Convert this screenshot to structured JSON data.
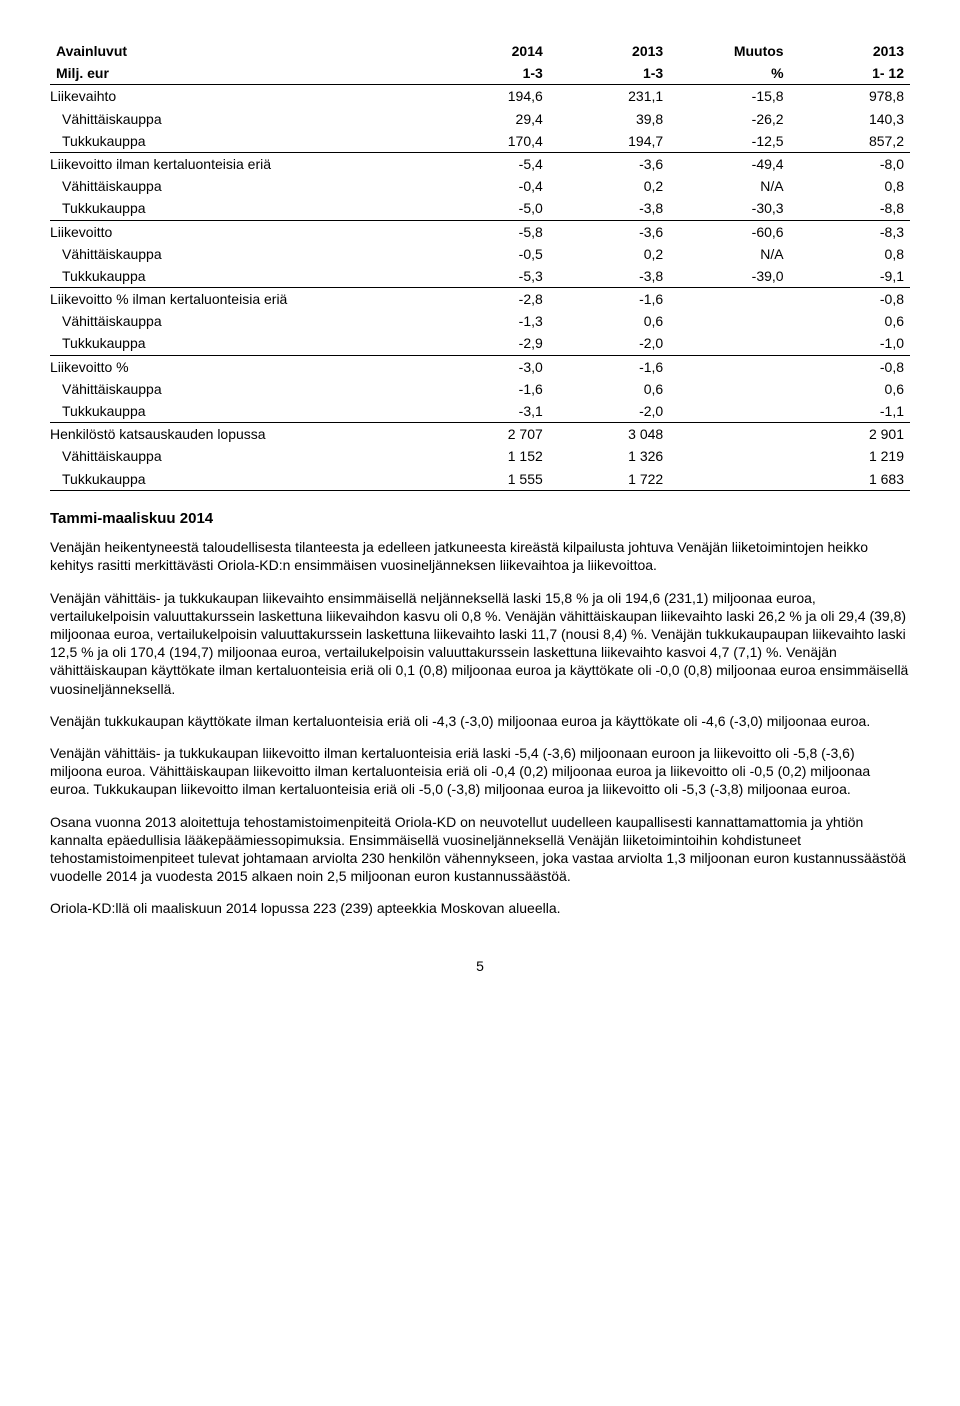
{
  "table": {
    "header_row1": {
      "c0": "Avainluvut",
      "c1": "2014",
      "c2": "2013",
      "c3": "Muutos",
      "c4": "2013"
    },
    "header_row2": {
      "c0": "Milj. eur",
      "c1": "1-3",
      "c2": "1-3",
      "c3": "%",
      "c4": "1- 12"
    },
    "rows": [
      {
        "label": "Liikevaihto",
        "c1": "194,6",
        "c2": "231,1",
        "c3": "-15,8",
        "c4": "978,8",
        "indent": false,
        "underline": false
      },
      {
        "label": "Vähittäiskauppa",
        "c1": "29,4",
        "c2": "39,8",
        "c3": "-26,2",
        "c4": "140,3",
        "indent": true,
        "underline": false
      },
      {
        "label": "Tukkukauppa",
        "c1": "170,4",
        "c2": "194,7",
        "c3": "-12,5",
        "c4": "857,2",
        "indent": true,
        "underline": true
      },
      {
        "label": "Liikevoitto ilman kertaluonteisia eriä",
        "c1": "-5,4",
        "c2": "-3,6",
        "c3": "-49,4",
        "c4": "-8,0",
        "indent": false,
        "underline": false
      },
      {
        "label": "Vähittäiskauppa",
        "c1": "-0,4",
        "c2": "0,2",
        "c3": "N/A",
        "c4": "0,8",
        "indent": true,
        "underline": false
      },
      {
        "label": "Tukkukauppa",
        "c1": "-5,0",
        "c2": "-3,8",
        "c3": "-30,3",
        "c4": "-8,8",
        "indent": true,
        "underline": true
      },
      {
        "label": "Liikevoitto",
        "c1": "-5,8",
        "c2": "-3,6",
        "c3": "-60,6",
        "c4": "-8,3",
        "indent": false,
        "underline": false
      },
      {
        "label": "Vähittäiskauppa",
        "c1": "-0,5",
        "c2": "0,2",
        "c3": "N/A",
        "c4": "0,8",
        "indent": true,
        "underline": false
      },
      {
        "label": "Tukkukauppa",
        "c1": "-5,3",
        "c2": "-3,8",
        "c3": "-39,0",
        "c4": "-9,1",
        "indent": true,
        "underline": true
      },
      {
        "label": "Liikevoitto % ilman kertaluonteisia eriä",
        "c1": "-2,8",
        "c2": "-1,6",
        "c3": "",
        "c4": "-0,8",
        "indent": false,
        "underline": false
      },
      {
        "label": "Vähittäiskauppa",
        "c1": "-1,3",
        "c2": "0,6",
        "c3": "",
        "c4": "0,6",
        "indent": true,
        "underline": false
      },
      {
        "label": "Tukkukauppa",
        "c1": "-2,9",
        "c2": "-2,0",
        "c3": "",
        "c4": "-1,0",
        "indent": true,
        "underline": true
      },
      {
        "label": "Liikevoitto %",
        "c1": "-3,0",
        "c2": "-1,6",
        "c3": "",
        "c4": "-0,8",
        "indent": false,
        "underline": false
      },
      {
        "label": "Vähittäiskauppa",
        "c1": "-1,6",
        "c2": "0,6",
        "c3": "",
        "c4": "0,6",
        "indent": true,
        "underline": false
      },
      {
        "label": "Tukkukauppa",
        "c1": "-3,1",
        "c2": "-2,0",
        "c3": "",
        "c4": "-1,1",
        "indent": true,
        "underline": true
      },
      {
        "label": "Henkilöstö katsauskauden lopussa",
        "c1": "2 707",
        "c2": "3 048",
        "c3": "",
        "c4": "2 901",
        "indent": false,
        "underline": false
      },
      {
        "label": "Vähittäiskauppa",
        "c1": "1 152",
        "c2": "1 326",
        "c3": "",
        "c4": "1 219",
        "indent": true,
        "underline": false
      },
      {
        "label": "Tukkukauppa",
        "c1": "1 555",
        "c2": "1 722",
        "c3": "",
        "c4": "1 683",
        "indent": true,
        "underline": true
      }
    ]
  },
  "section_title": "Tammi-maaliskuu 2014",
  "paragraphs": [
    "Venäjän heikentyneestä taloudellisesta tilanteesta ja edelleen jatkuneesta kireästä kilpailusta johtuva Venäjän liiketoimintojen heikko kehitys rasitti merkittävästi Oriola-KD:n ensimmäisen vuosineljänneksen liikevaihtoa ja liikevoittoa.",
    "Venäjän vähittäis- ja tukkukaupan liikevaihto ensimmäisellä neljänneksellä laski 15,8 % ja oli 194,6 (231,1) miljoonaa euroa, vertailukelpoisin valuuttakurssein laskettuna liikevaihdon kasvu oli 0,8 %. Venäjän vähittäiskaupan liikevaihto laski 26,2 % ja oli 29,4 (39,8) miljoonaa euroa, vertailukelpoisin valuuttakurssein laskettuna liikevaihto laski 11,7 (nousi 8,4) %. Venäjän tukkukaupaupan liikevaihto laski 12,5 % ja oli 170,4 (194,7) miljoonaa euroa, vertailukelpoisin valuuttakurssein laskettuna liikevaihto kasvoi 4,7 (7,1) %. Venäjän vähittäiskaupan käyttökate ilman kertaluonteisia eriä oli 0,1 (0,8) miljoonaa euroa ja käyttökate oli -0,0 (0,8) miljoonaa euroa ensimmäisellä vuosineljänneksellä.",
    "Venäjän tukkukaupan käyttökate ilman kertaluonteisia eriä oli -4,3 (-3,0) miljoonaa euroa ja käyttökate oli -4,6 (-3,0) miljoonaa euroa.",
    "Venäjän vähittäis- ja tukkukaupan liikevoitto ilman kertaluonteisia eriä laski -5,4 (-3,6) miljoonaan euroon ja liikevoitto oli -5,8 (-3,6) miljoona euroa. Vähittäiskaupan liikevoitto ilman kertaluonteisia eriä oli -0,4 (0,2) miljoonaa euroa ja liikevoitto oli -0,5 (0,2) miljoonaa euroa. Tukkukaupan liikevoitto ilman kertaluonteisia eriä oli -5,0 (-3,8) miljoonaa euroa ja liikevoitto oli -5,3 (-3,8) miljoonaa euroa.",
    "Osana vuonna 2013 aloitettuja tehostamistoimenpiteitä Oriola-KD on neuvotellut uudelleen kaupallisesti kannattamattomia ja yhtiön kannalta epäedullisia lääkepäämiessopimuksia. Ensimmäisellä vuosineljänneksellä Venäjän liiketoimintoihin kohdistuneet tehostamistoimenpiteet tulevat johtamaan arviolta 230 henkilön vähennykseen, joka vastaa arviolta 1,3 miljoonan euron kustannussäästöä vuodelle 2014 ja vuodesta 2015 alkaen noin 2,5 miljoonan euron kustannussäästöä.",
    "Oriola-KD:llä oli maaliskuun 2014 lopussa 223 (239) apteekkia Moskovan alueella."
  ],
  "page_number": "5",
  "style": {
    "col_widths_pct": [
      44,
      14,
      14,
      14,
      14
    ],
    "font_family": "Arial",
    "font_size_pt": 11,
    "text_color": "#000000",
    "background_color": "#ffffff",
    "border_color": "#000000"
  }
}
